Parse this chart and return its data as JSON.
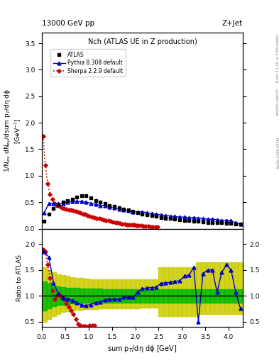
{
  "title": "Nch (ATLAS UE in Z production)",
  "top_left_label": "13000 GeV pp",
  "top_right_label": "Z+Jet",
  "right_label1": "Rivet 3.1.10, ≥ 3.5M events",
  "right_label2": "[arXiv:1306.3436]",
  "right_label3": "mcplots.cern.ch",
  "xlabel": "sum p$_T$/dη dϕ [GeV]",
  "ratio_ylabel": "Ratio to ATLAS",
  "xlim": [
    0,
    4.3
  ],
  "ylim_main": [
    0,
    3.7
  ],
  "ylim_ratio": [
    0.4,
    2.3
  ],
  "atlas_x": [
    0.05,
    0.15,
    0.25,
    0.35,
    0.45,
    0.55,
    0.65,
    0.75,
    0.85,
    0.95,
    1.05,
    1.15,
    1.25,
    1.35,
    1.45,
    1.55,
    1.65,
    1.75,
    1.85,
    1.95,
    2.05,
    2.15,
    2.25,
    2.35,
    2.45,
    2.55,
    2.65,
    2.75,
    2.85,
    2.95,
    3.05,
    3.15,
    3.25,
    3.35,
    3.45,
    3.55,
    3.65,
    3.75,
    3.85,
    3.95,
    4.05,
    4.15,
    4.25
  ],
  "atlas_y": [
    0.14,
    0.27,
    0.38,
    0.45,
    0.5,
    0.53,
    0.56,
    0.6,
    0.62,
    0.62,
    0.58,
    0.53,
    0.5,
    0.47,
    0.44,
    0.42,
    0.4,
    0.37,
    0.35,
    0.33,
    0.3,
    0.28,
    0.26,
    0.25,
    0.23,
    0.21,
    0.2,
    0.19,
    0.18,
    0.17,
    0.16,
    0.15,
    0.14,
    0.14,
    0.13,
    0.12,
    0.12,
    0.11,
    0.11,
    0.1,
    0.1,
    0.09,
    0.09
  ],
  "atlas_yerr": [
    0.01,
    0.01,
    0.01,
    0.01,
    0.01,
    0.01,
    0.01,
    0.01,
    0.01,
    0.01,
    0.01,
    0.01,
    0.01,
    0.01,
    0.01,
    0.01,
    0.01,
    0.01,
    0.01,
    0.01,
    0.01,
    0.01,
    0.01,
    0.01,
    0.01,
    0.01,
    0.01,
    0.01,
    0.01,
    0.01,
    0.01,
    0.01,
    0.01,
    0.01,
    0.01,
    0.01,
    0.01,
    0.01,
    0.01,
    0.01,
    0.01,
    0.01,
    0.01
  ],
  "pythia_x": [
    0.05,
    0.15,
    0.25,
    0.35,
    0.45,
    0.55,
    0.65,
    0.75,
    0.85,
    0.95,
    1.05,
    1.15,
    1.25,
    1.35,
    1.45,
    1.55,
    1.65,
    1.75,
    1.85,
    1.95,
    2.05,
    2.15,
    2.25,
    2.35,
    2.45,
    2.55,
    2.65,
    2.75,
    2.85,
    2.95,
    3.05,
    3.15,
    3.25,
    3.35,
    3.45,
    3.55,
    3.65,
    3.75,
    3.85,
    3.95,
    4.05,
    4.15,
    4.25
  ],
  "pythia_y": [
    0.3,
    0.48,
    0.48,
    0.47,
    0.48,
    0.5,
    0.51,
    0.52,
    0.51,
    0.5,
    0.48,
    0.46,
    0.44,
    0.43,
    0.41,
    0.39,
    0.37,
    0.36,
    0.34,
    0.32,
    0.32,
    0.32,
    0.3,
    0.29,
    0.27,
    0.26,
    0.25,
    0.24,
    0.23,
    0.22,
    0.22,
    0.21,
    0.21,
    0.2,
    0.19,
    0.18,
    0.18,
    0.17,
    0.16,
    0.16,
    0.15,
    0.11,
    0.09
  ],
  "sherpa_x": [
    0.025,
    0.075,
    0.125,
    0.175,
    0.225,
    0.275,
    0.325,
    0.375,
    0.425,
    0.475,
    0.525,
    0.575,
    0.625,
    0.675,
    0.725,
    0.775,
    0.825,
    0.875,
    0.925,
    0.975,
    1.025,
    1.075,
    1.125,
    1.175,
    1.225,
    1.275,
    1.325,
    1.375,
    1.425,
    1.475,
    1.525,
    1.575,
    1.625,
    1.675,
    1.725,
    1.775,
    1.825,
    1.875,
    1.925,
    1.975,
    2.025,
    2.075,
    2.125,
    2.175,
    2.225,
    2.275,
    2.325,
    2.375,
    2.425,
    2.475
  ],
  "sherpa_y": [
    1.75,
    1.2,
    0.85,
    0.65,
    0.55,
    0.48,
    0.44,
    0.42,
    0.4,
    0.38,
    0.37,
    0.36,
    0.35,
    0.34,
    0.33,
    0.31,
    0.3,
    0.28,
    0.27,
    0.25,
    0.24,
    0.22,
    0.21,
    0.2,
    0.19,
    0.18,
    0.17,
    0.16,
    0.15,
    0.14,
    0.13,
    0.12,
    0.11,
    0.1,
    0.09,
    0.09,
    0.08,
    0.08,
    0.07,
    0.07,
    0.06,
    0.06,
    0.06,
    0.05,
    0.05,
    0.05,
    0.04,
    0.04,
    0.04,
    0.04
  ],
  "ratio_pythia_x": [
    0.05,
    0.15,
    0.25,
    0.35,
    0.45,
    0.55,
    0.65,
    0.75,
    0.85,
    0.95,
    1.05,
    1.15,
    1.25,
    1.35,
    1.45,
    1.55,
    1.65,
    1.75,
    1.85,
    1.95,
    2.05,
    2.15,
    2.25,
    2.35,
    2.45,
    2.55,
    2.65,
    2.75,
    2.85,
    2.95,
    3.05,
    3.15,
    3.25,
    3.35,
    3.45,
    3.55,
    3.65,
    3.75,
    3.85,
    3.95,
    4.05,
    4.15,
    4.25
  ],
  "ratio_pythia_y": [
    1.85,
    1.75,
    1.25,
    1.04,
    0.96,
    0.94,
    0.91,
    0.87,
    0.82,
    0.81,
    0.83,
    0.87,
    0.88,
    0.92,
    0.93,
    0.93,
    0.93,
    0.97,
    0.97,
    0.97,
    1.07,
    1.14,
    1.15,
    1.16,
    1.17,
    1.24,
    1.25,
    1.26,
    1.28,
    1.29,
    1.38,
    1.4,
    1.55,
    0.5,
    1.43,
    1.5,
    1.5,
    1.07,
    1.45,
    1.6,
    1.5,
    1.07,
    0.75
  ],
  "ratio_sherpa_x": [
    0.025,
    0.075,
    0.125,
    0.175,
    0.225,
    0.275,
    0.325,
    0.375,
    0.425,
    0.475,
    0.525,
    0.575,
    0.625,
    0.675,
    0.725,
    0.775,
    0.825,
    0.875,
    0.925,
    0.975,
    1.025,
    1.075,
    1.125
  ],
  "ratio_sherpa_y": [
    1.9,
    1.85,
    1.6,
    1.35,
    1.1,
    0.93,
    1.0,
    1.02,
    0.97,
    0.93,
    0.85,
    0.78,
    0.72,
    0.65,
    0.55,
    0.45,
    0.42,
    0.41,
    0.41,
    0.4,
    0.42,
    0.43,
    0.43
  ],
  "band_edges": [
    0.0,
    0.1,
    0.2,
    0.3,
    0.4,
    0.5,
    0.6,
    0.7,
    0.8,
    0.9,
    1.0,
    1.1,
    1.2,
    1.3,
    1.4,
    1.5,
    1.6,
    1.7,
    1.8,
    1.9,
    2.0,
    2.1,
    2.2,
    2.3,
    2.4,
    2.5,
    2.6,
    2.7,
    2.8,
    2.9,
    3.0,
    3.1,
    3.2,
    3.3,
    3.4,
    3.5,
    3.6,
    3.7,
    3.8,
    3.9,
    4.0,
    4.1,
    4.2,
    4.3
  ],
  "band_green_lo": [
    0.72,
    0.76,
    0.8,
    0.82,
    0.83,
    0.84,
    0.85,
    0.85,
    0.86,
    0.86,
    0.86,
    0.86,
    0.86,
    0.87,
    0.87,
    0.87,
    0.87,
    0.87,
    0.87,
    0.87,
    0.87,
    0.87,
    0.87,
    0.87,
    0.87,
    0.87,
    0.87,
    0.87,
    0.87,
    0.87,
    0.87,
    0.87,
    0.87,
    0.87,
    0.87,
    0.87,
    0.87,
    0.87,
    0.87,
    0.87,
    0.87,
    0.87,
    0.87,
    0.87
  ],
  "band_green_hi": [
    1.28,
    1.24,
    1.2,
    1.18,
    1.17,
    1.16,
    1.15,
    1.15,
    1.14,
    1.14,
    1.14,
    1.14,
    1.14,
    1.13,
    1.13,
    1.13,
    1.13,
    1.13,
    1.13,
    1.13,
    1.13,
    1.13,
    1.13,
    1.13,
    1.13,
    1.13,
    1.13,
    1.13,
    1.13,
    1.13,
    1.13,
    1.13,
    1.13,
    1.13,
    1.13,
    1.13,
    1.13,
    1.13,
    1.13,
    1.13,
    1.13,
    1.13,
    1.13,
    1.13
  ],
  "band_yellow_lo": [
    0.5,
    0.55,
    0.6,
    0.65,
    0.68,
    0.7,
    0.72,
    0.73,
    0.73,
    0.74,
    0.74,
    0.74,
    0.75,
    0.75,
    0.75,
    0.76,
    0.76,
    0.76,
    0.76,
    0.76,
    0.76,
    0.77,
    0.77,
    0.77,
    0.77,
    0.6,
    0.6,
    0.6,
    0.6,
    0.6,
    0.6,
    0.6,
    0.6,
    0.65,
    0.65,
    0.65,
    0.65,
    0.65,
    0.65,
    0.65,
    0.65,
    0.65,
    0.65,
    0.65
  ],
  "band_yellow_hi": [
    1.55,
    1.5,
    1.45,
    1.42,
    1.4,
    1.38,
    1.36,
    1.35,
    1.34,
    1.33,
    1.32,
    1.32,
    1.32,
    1.32,
    1.32,
    1.32,
    1.32,
    1.32,
    1.32,
    1.32,
    1.32,
    1.32,
    1.32,
    1.32,
    1.32,
    1.55,
    1.55,
    1.55,
    1.55,
    1.55,
    1.55,
    1.55,
    1.55,
    1.65,
    1.65,
    1.65,
    1.65,
    1.65,
    1.65,
    1.65,
    1.65,
    1.65,
    1.65,
    1.65
  ],
  "atlas_color": "#000000",
  "pythia_color": "#0000cc",
  "sherpa_color": "#cc0000",
  "green_band_color": "#00bb00",
  "yellow_band_color": "#cccc00"
}
